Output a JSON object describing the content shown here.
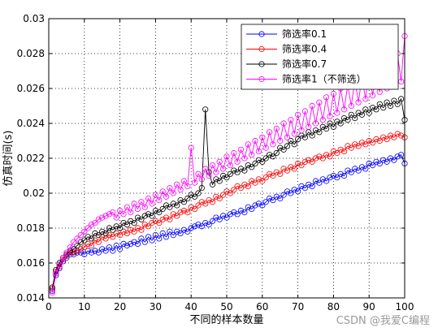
{
  "chart_data": {
    "type": "line",
    "title": "",
    "xlabel": "不同的样本数量",
    "ylabel": "仿真时间(s)",
    "xlim": [
      0,
      100
    ],
    "ylim": [
      0.014,
      0.03
    ],
    "xticks": [
      0,
      10,
      20,
      30,
      40,
      50,
      60,
      70,
      80,
      90,
      100
    ],
    "yticks": [
      0.014,
      0.016,
      0.018,
      0.02,
      0.022,
      0.024,
      0.026,
      0.028,
      0.03
    ],
    "xtick_labels": [
      "0",
      "10",
      "20",
      "30",
      "40",
      "50",
      "60",
      "70",
      "80",
      "90",
      "100"
    ],
    "ytick_labels": [
      "0.014",
      "0.016",
      "0.018",
      "0.02",
      "0.022",
      "0.024",
      "0.026",
      "0.028",
      "0.03"
    ],
    "grid": true,
    "legend_position": "top-right",
    "series": [
      {
        "name": "筛选率0.1",
        "color": "#0000ff",
        "values": [
          0.0144,
          0.0153,
          0.0157,
          0.0161,
          0.0163,
          0.0165,
          0.0165,
          0.0166,
          0.0166,
          0.0165,
          0.0167,
          0.0166,
          0.0167,
          0.0166,
          0.0168,
          0.0167,
          0.0169,
          0.0167,
          0.017,
          0.0168,
          0.0171,
          0.017,
          0.0171,
          0.0172,
          0.0171,
          0.0174,
          0.0172,
          0.0175,
          0.0173,
          0.0176,
          0.0174,
          0.0177,
          0.0175,
          0.0178,
          0.0176,
          0.0178,
          0.0177,
          0.0179,
          0.0178,
          0.018,
          0.0181,
          0.0182,
          0.0181,
          0.0183,
          0.0182,
          0.0184,
          0.0186,
          0.0185,
          0.0187,
          0.0186,
          0.0188,
          0.0189,
          0.0188,
          0.019,
          0.0189,
          0.0192,
          0.0191,
          0.0193,
          0.0194,
          0.0193,
          0.0195,
          0.0197,
          0.0196,
          0.0198,
          0.0197,
          0.0199,
          0.0201,
          0.02,
          0.0202,
          0.0201,
          0.0204,
          0.0203,
          0.0205,
          0.0204,
          0.0207,
          0.0206,
          0.0208,
          0.0207,
          0.0209,
          0.021,
          0.0209,
          0.0211,
          0.021,
          0.0213,
          0.0212,
          0.0214,
          0.0213,
          0.0215,
          0.0214,
          0.0217,
          0.0216,
          0.0218,
          0.0217,
          0.0219,
          0.0218,
          0.022,
          0.0219,
          0.0221,
          0.0222,
          0.0217
        ]
      },
      {
        "name": "筛选率0.4",
        "color": "#ff0000",
        "values": [
          0.0145,
          0.0155,
          0.0158,
          0.0162,
          0.0164,
          0.0166,
          0.0166,
          0.0167,
          0.0168,
          0.0169,
          0.0171,
          0.017,
          0.0173,
          0.0172,
          0.0175,
          0.0174,
          0.0176,
          0.0175,
          0.0177,
          0.0176,
          0.0178,
          0.0177,
          0.0179,
          0.0178,
          0.018,
          0.0179,
          0.0182,
          0.0181,
          0.0183,
          0.0184,
          0.0183,
          0.0185,
          0.0186,
          0.0185,
          0.0188,
          0.0187,
          0.0189,
          0.019,
          0.0189,
          0.0192,
          0.0191,
          0.0193,
          0.0195,
          0.0194,
          0.0196,
          0.0195,
          0.0198,
          0.0197,
          0.0199,
          0.0201,
          0.02,
          0.0202,
          0.0204,
          0.0203,
          0.0205,
          0.0204,
          0.0207,
          0.0206,
          0.0208,
          0.0207,
          0.0209,
          0.0211,
          0.021,
          0.0212,
          0.0211,
          0.0214,
          0.0213,
          0.0215,
          0.0214,
          0.0217,
          0.0216,
          0.0218,
          0.0219,
          0.0218,
          0.022,
          0.0221,
          0.022,
          0.0222,
          0.0221,
          0.0224,
          0.0223,
          0.0225,
          0.0224,
          0.0227,
          0.0226,
          0.0228,
          0.0227,
          0.0229,
          0.0228,
          0.023,
          0.0229,
          0.0231,
          0.023,
          0.0232,
          0.0231,
          0.0233,
          0.0232,
          0.0234,
          0.0233,
          0.0232
        ]
      },
      {
        "name": "筛选率0.7",
        "color": "#000000",
        "values": [
          0.0146,
          0.0156,
          0.016,
          0.0163,
          0.0165,
          0.0167,
          0.0168,
          0.017,
          0.0172,
          0.0173,
          0.0175,
          0.0174,
          0.0177,
          0.0176,
          0.0178,
          0.0177,
          0.018,
          0.0179,
          0.0181,
          0.018,
          0.0183,
          0.0182,
          0.0184,
          0.0183,
          0.0186,
          0.0185,
          0.0187,
          0.0188,
          0.0187,
          0.019,
          0.0189,
          0.0191,
          0.0193,
          0.0192,
          0.0194,
          0.0193,
          0.0196,
          0.0195,
          0.0197,
          0.0199,
          0.0198,
          0.02,
          0.0203,
          0.0248,
          0.0212,
          0.0205,
          0.0208,
          0.0207,
          0.021,
          0.0209,
          0.0211,
          0.0213,
          0.0212,
          0.0214,
          0.0213,
          0.0216,
          0.0215,
          0.0217,
          0.0219,
          0.0218,
          0.022,
          0.0222,
          0.0221,
          0.0223,
          0.0226,
          0.0225,
          0.0227,
          0.023,
          0.0228,
          0.0231,
          0.0233,
          0.0232,
          0.0235,
          0.0233,
          0.0236,
          0.0235,
          0.0238,
          0.0237,
          0.024,
          0.0238,
          0.0241,
          0.024,
          0.0243,
          0.0242,
          0.0245,
          0.0243,
          0.0246,
          0.0245,
          0.0248,
          0.0246,
          0.0249,
          0.0248,
          0.0251,
          0.0249,
          0.0252,
          0.025,
          0.0253,
          0.0251,
          0.0254,
          0.0242
        ]
      },
      {
        "name": "筛选率1（不筛选）",
        "color": "#ff00ff",
        "values": [
          0.0143,
          0.0154,
          0.0159,
          0.0163,
          0.0166,
          0.0169,
          0.0172,
          0.0174,
          0.0176,
          0.0178,
          0.018,
          0.0182,
          0.0183,
          0.0185,
          0.0186,
          0.0187,
          0.0188,
          0.0189,
          0.0186,
          0.019,
          0.0188,
          0.0192,
          0.0189,
          0.0194,
          0.0191,
          0.0195,
          0.0192,
          0.0197,
          0.0194,
          0.0199,
          0.0196,
          0.0201,
          0.0198,
          0.0203,
          0.02,
          0.0205,
          0.0202,
          0.0207,
          0.0204,
          0.0226,
          0.0206,
          0.0211,
          0.0208,
          0.0214,
          0.021,
          0.0216,
          0.0212,
          0.0218,
          0.0214,
          0.0221,
          0.0216,
          0.0223,
          0.0218,
          0.0225,
          0.022,
          0.0228,
          0.0222,
          0.023,
          0.0224,
          0.0232,
          0.0226,
          0.0235,
          0.0228,
          0.0237,
          0.023,
          0.024,
          0.0232,
          0.0242,
          0.0234,
          0.0245,
          0.0236,
          0.0247,
          0.0238,
          0.025,
          0.024,
          0.0252,
          0.0242,
          0.0255,
          0.0244,
          0.0257,
          0.0246,
          0.026,
          0.0248,
          0.0262,
          0.025,
          0.0265,
          0.0252,
          0.0267,
          0.0254,
          0.027,
          0.0256,
          0.0272,
          0.0258,
          0.0275,
          0.026,
          0.0277,
          0.0262,
          0.028,
          0.0264,
          0.029
        ]
      }
    ]
  },
  "watermark": "CSDN @我爱C编程"
}
